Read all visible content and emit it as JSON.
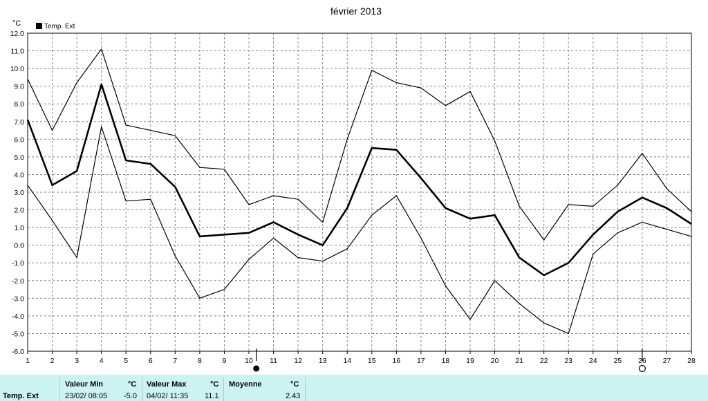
{
  "chart_data": {
    "type": "line",
    "title": "février 2013",
    "ylabel": "°C",
    "ylim": [
      -6,
      12
    ],
    "yticks": [
      "12.0",
      "11.0",
      "10.0",
      "9.0",
      "8.0",
      "7.0",
      "6.0",
      "5.0",
      "4.0",
      "3.0",
      "2.0",
      "1.0",
      "0.0",
      "-1.0",
      "-2.0",
      "-3.0",
      "-4.0",
      "-5.0",
      "-6.0"
    ],
    "x": [
      1,
      2,
      3,
      4,
      5,
      6,
      7,
      8,
      9,
      10,
      11,
      12,
      13,
      14,
      15,
      16,
      17,
      18,
      19,
      20,
      21,
      22,
      23,
      24,
      25,
      26,
      27,
      28
    ],
    "xlim": [
      1,
      28
    ],
    "grid": true,
    "legend": "top-left",
    "legend_label": "Temp. Ext",
    "series": [
      {
        "role": "max",
        "width": 1.2,
        "values": [
          9.4,
          6.5,
          9.2,
          11.1,
          6.8,
          6.5,
          6.2,
          4.4,
          4.3,
          2.3,
          2.8,
          2.6,
          1.3,
          6.0,
          9.9,
          9.2,
          8.9,
          7.9,
          8.7,
          5.9,
          2.2,
          0.3,
          2.3,
          2.2,
          3.4,
          5.2,
          3.2,
          1.9
        ]
      },
      {
        "role": "mean",
        "name": "Temp. Ext",
        "width": 2.6,
        "values": [
          7.1,
          3.4,
          4.2,
          9.1,
          4.8,
          4.6,
          3.3,
          0.5,
          0.6,
          0.7,
          1.3,
          0.6,
          0.0,
          2.1,
          5.5,
          5.4,
          3.8,
          2.1,
          1.5,
          1.7,
          -0.7,
          -1.7,
          -1.0,
          0.6,
          1.9,
          2.7,
          2.1,
          1.2
        ]
      },
      {
        "role": "min",
        "width": 1.2,
        "values": [
          3.4,
          1.4,
          -0.7,
          6.7,
          2.5,
          2.6,
          -0.6,
          -3.0,
          -2.5,
          -0.8,
          0.4,
          -0.7,
          -0.9,
          -0.2,
          1.7,
          2.8,
          0.4,
          -2.3,
          -4.2,
          -2.0,
          -3.3,
          -4.4,
          -5.0,
          -0.5,
          0.7,
          1.3,
          0.9,
          0.5
        ]
      }
    ],
    "moon_phases": [
      {
        "x": 10.3,
        "symbol": "●"
      },
      {
        "x": 26,
        "symbol": "○"
      }
    ]
  },
  "summary": {
    "row_label": "Temp. Ext",
    "min_header": "Valeur Min",
    "min_unit": "°C",
    "min_time": "23/02/  08:05",
    "min_value": "-5.0",
    "max_header": "Valeur Max",
    "max_unit": "°C",
    "max_time": "04/02/  11:35",
    "max_value": "11.1",
    "avg_header": "Moyenne",
    "avg_unit": "°C",
    "avg_value": "2.43"
  }
}
